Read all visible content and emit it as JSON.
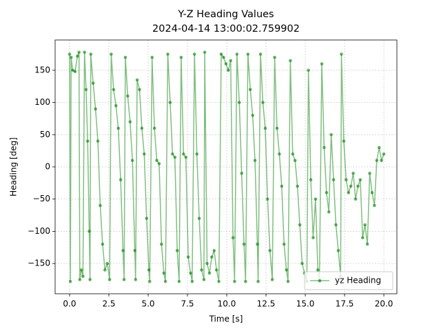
{
  "chart_data": {
    "type": "line",
    "title": "Y-Z Heading Values",
    "subtitle": "2024-04-14 13:00:02.759902",
    "x_label": "Time [s]",
    "y_label": "Heading [deg]",
    "xlim": [
      -0.92,
      20.83
    ],
    "ylim": [
      -197,
      197
    ],
    "xticks": [
      {
        "value": 0,
        "label": "0.0"
      },
      2.5,
      {
        "value": 5,
        "label": "5.0"
      },
      7.5,
      {
        "value": 10,
        "label": "10.0"
      },
      12.5,
      {
        "value": 15,
        "label": "15.0"
      },
      17.5,
      {
        "value": 20,
        "label": "20.0"
      }
    ],
    "yticks": [
      {
        "value": -150,
        "label": "−150"
      },
      {
        "value": -100,
        "label": "−100"
      },
      {
        "value": -50,
        "label": "−50"
      },
      0,
      50,
      100,
      150
    ],
    "grid": true,
    "legend_position": "lower right",
    "x": [
      0.0,
      0.05,
      0.1,
      0.2,
      0.35,
      0.5,
      0.6,
      0.65,
      0.75,
      0.85,
      0.95,
      1.05,
      1.15,
      1.25,
      1.3,
      1.35,
      1.5,
      1.65,
      1.8,
      1.95,
      2.1,
      2.25,
      2.4,
      2.55,
      2.65,
      2.8,
      2.95,
      3.1,
      3.25,
      3.4,
      3.47,
      3.55,
      3.7,
      3.85,
      4.0,
      4.15,
      4.2,
      4.3,
      4.45,
      4.6,
      4.75,
      4.9,
      5.05,
      5.1,
      5.25,
      5.4,
      5.55,
      5.7,
      5.85,
      6.0,
      6.1,
      6.25,
      6.4,
      6.55,
      6.7,
      6.85,
      6.97,
      7.1,
      7.25,
      7.4,
      7.55,
      7.7,
      7.8,
      7.95,
      8.1,
      8.25,
      8.4,
      8.55,
      8.6,
      8.75,
      8.9,
      9.05,
      9.2,
      9.35,
      9.5,
      9.65,
      9.8,
      9.95,
      10.1,
      10.25,
      10.4,
      10.5,
      10.65,
      10.8,
      10.95,
      11.1,
      11.2,
      11.35,
      11.5,
      11.65,
      11.8,
      11.95,
      12.0,
      12.15,
      12.3,
      12.45,
      12.6,
      12.75,
      12.9,
      13.05,
      13.2,
      13.35,
      13.5,
      13.65,
      13.8,
      13.9,
      14.05,
      14.2,
      14.35,
      14.5,
      14.65,
      14.8,
      14.95,
      15.1,
      15.2,
      15.35,
      15.5,
      15.65,
      15.8,
      15.9,
      16.05,
      16.2,
      16.35,
      16.5,
      16.65,
      16.8,
      16.95,
      17.1,
      17.25,
      17.3,
      17.45,
      17.6,
      17.75,
      17.9,
      18.05,
      18.2,
      18.35,
      18.5,
      18.65,
      18.8,
      18.95,
      19.1,
      19.25,
      19.4,
      19.55,
      19.7,
      19.85,
      20.0
    ],
    "series": [
      {
        "name": "yz Heading",
        "color": "#008000",
        "values": [
          175,
          -178,
          170,
          150,
          148,
          172,
          178,
          -175,
          -160,
          -170,
          178,
          120,
          40,
          -100,
          -175,
          175,
          130,
          90,
          40,
          -60,
          -120,
          -160,
          -150,
          -175,
          175,
          120,
          95,
          60,
          -20,
          -130,
          -175,
          170,
          110,
          70,
          10,
          -130,
          -175,
          135,
          120,
          60,
          20,
          -80,
          -160,
          -178,
          170,
          60,
          10,
          5,
          -120,
          -165,
          -178,
          175,
          100,
          20,
          15,
          -130,
          -178,
          170,
          20,
          15,
          -140,
          -165,
          -178,
          175,
          20,
          -80,
          -160,
          -175,
          178,
          -150,
          -165,
          -140,
          -130,
          -160,
          -178,
          175,
          170,
          160,
          150,
          165,
          -110,
          -178,
          175,
          100,
          -10,
          -120,
          -178,
          175,
          120,
          80,
          10,
          -120,
          -178,
          175,
          100,
          60,
          -50,
          -130,
          -175,
          170,
          60,
          20,
          -30,
          -120,
          -160,
          -178,
          165,
          20,
          10,
          -30,
          -90,
          -150,
          -165,
          -178,
          150,
          -20,
          -110,
          -50,
          -160,
          -178,
          160,
          30,
          -40,
          -70,
          50,
          -20,
          -90,
          -130,
          -170,
          175,
          40,
          -20,
          -40,
          -30,
          -10,
          -50,
          -30,
          -20,
          -110,
          -90,
          -120,
          -10,
          -40,
          -60,
          10,
          30,
          10,
          20
        ]
      }
    ]
  }
}
